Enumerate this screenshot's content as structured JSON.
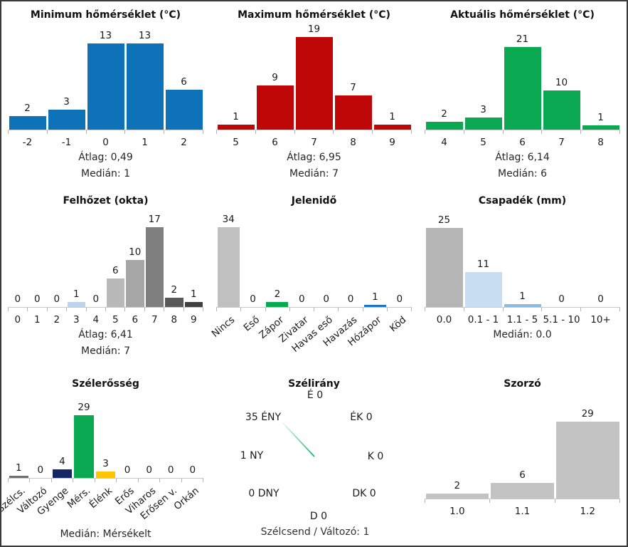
{
  "frame": {
    "background": "#ffffff",
    "border_color": "#3a3a3a"
  },
  "chart_data": [
    {
      "id": "min-temp",
      "type": "bar",
      "title": "Minimum hőmérséklet (°C)",
      "categories": [
        "-2",
        "-1",
        "0",
        "1",
        "2"
      ],
      "values": [
        2,
        3,
        13,
        13,
        6
      ],
      "colors": [
        "#0e72b8",
        "#0e72b8",
        "#0e72b8",
        "#0e72b8",
        "#0e72b8"
      ],
      "stats": [
        "Átlag: 0,49",
        "Medián: 1"
      ],
      "ylim": [
        0,
        13
      ],
      "grid": false,
      "legend": "none"
    },
    {
      "id": "max-temp",
      "type": "bar",
      "title": "Maximum hőmérséklet (°C)",
      "categories": [
        "5",
        "6",
        "7",
        "8",
        "9"
      ],
      "values": [
        1,
        9,
        19,
        7,
        1
      ],
      "colors": [
        "#c00707",
        "#c00707",
        "#c00707",
        "#c00707",
        "#c00707"
      ],
      "stats": [
        "Átlag: 6,95",
        "Medián: 7"
      ],
      "ylim": [
        0,
        19
      ],
      "grid": false,
      "legend": "none"
    },
    {
      "id": "current-temp",
      "type": "bar",
      "title": "Aktuális hőmérséklet (°C)",
      "categories": [
        "4",
        "5",
        "6",
        "7",
        "8"
      ],
      "values": [
        2,
        3,
        21,
        10,
        1
      ],
      "colors": [
        "#0aa851",
        "#0aa851",
        "#0aa851",
        "#0aa851",
        "#0aa851"
      ],
      "stats": [
        "Átlag: 6,14",
        "Medián: 6"
      ],
      "ylim": [
        0,
        21
      ],
      "grid": false,
      "legend": "none"
    },
    {
      "id": "cloud-cover",
      "type": "bar",
      "title": "Felhőzet (okta)",
      "categories": [
        "0",
        "1",
        "2",
        "3",
        "4",
        "5",
        "6",
        "7",
        "8",
        "9"
      ],
      "values": [
        0,
        0,
        0,
        1,
        0,
        6,
        10,
        17,
        2,
        1
      ],
      "colors": [
        "#c0c0c0",
        "#c0c0c0",
        "#c0c0c0",
        "#bdd3ec",
        "#c0c0c0",
        "#b9b9b9",
        "#a6a6a6",
        "#7f7f7f",
        "#595959",
        "#3f3f3f"
      ],
      "stats": [
        "Átlag: 6,41",
        "Medián: 7"
      ],
      "ylim": [
        0,
        17
      ],
      "grid": false,
      "legend": "none"
    },
    {
      "id": "present-weather",
      "type": "bar",
      "title": "Jelenidő",
      "categories": [
        "Nincs",
        "Eső",
        "Zápor",
        "Zivatar",
        "Havas eső",
        "Havazás",
        "Hózápor",
        "Köd"
      ],
      "values": [
        34,
        0,
        2,
        0,
        0,
        0,
        1,
        0
      ],
      "colors": [
        "#c0c0c0",
        "#c0c0c0",
        "#0aa851",
        "#c0c0c0",
        "#c0c0c0",
        "#c0c0c0",
        "#1c74c4",
        "#c0c0c0"
      ],
      "stats": [],
      "ylim": [
        0,
        34
      ],
      "grid": false,
      "legend": "none"
    },
    {
      "id": "precipitation",
      "type": "bar",
      "title": "Csapadék (mm)",
      "categories": [
        "0.0",
        "0.1 - 1",
        "1.1 - 5",
        "5.1 - 10",
        "10+"
      ],
      "values": [
        25,
        11,
        1,
        0,
        0
      ],
      "colors": [
        "#b5b5b5",
        "#cadef3",
        "#8bbbe3",
        "#cadef3",
        "#cadef3"
      ],
      "stats": [
        "Medián: 0.0"
      ],
      "ylim": [
        0,
        25
      ],
      "grid": false,
      "legend": "none"
    },
    {
      "id": "wind-strength",
      "type": "bar",
      "title": "Szélerősség",
      "categories": [
        "Szélcs.",
        "Változó",
        "Gyenge",
        "Mérs.",
        "Élénk",
        "Erős",
        "Viharos",
        "Erősen v.",
        "Orkán"
      ],
      "values": [
        1,
        0,
        4,
        29,
        3,
        0,
        0,
        0,
        0
      ],
      "colors": [
        "#6f6f6f",
        "#9f9f9f",
        "#142664",
        "#0aa851",
        "#fdc400",
        "#c0c0c0",
        "#c0c0c0",
        "#c0c0c0",
        "#c0c0c0"
      ],
      "stats": [
        "Medián: Mérsékelt"
      ],
      "ylim": [
        0,
        29
      ],
      "grid": false,
      "legend": "none"
    },
    {
      "id": "wind-direction",
      "type": "compass",
      "title": "Szélirány",
      "directions": [
        {
          "dir": "É",
          "display": "É 0",
          "value": 0
        },
        {
          "dir": "ÉK",
          "display": "ÉK 0",
          "value": 0
        },
        {
          "dir": "K",
          "display": "K 0",
          "value": 0
        },
        {
          "dir": "DK",
          "display": "DK 0",
          "value": 0
        },
        {
          "dir": "D",
          "display": "D 0",
          "value": 0
        },
        {
          "dir": "DNY",
          "display": "0 DNY",
          "value": 0
        },
        {
          "dir": "NY",
          "display": "1 NY",
          "value": 1
        },
        {
          "dir": "ÉNY",
          "display": "35 ÉNY",
          "value": 35
        }
      ],
      "needle": {
        "direction": "ÉNY",
        "value": 35,
        "color": "#17b862",
        "color_light": "#eafaf1"
      },
      "footer": "Szélcsend / Változó: 1"
    },
    {
      "id": "multiplier",
      "type": "bar",
      "title": "Szorzó",
      "categories": [
        "1.0",
        "1.1",
        "1.2"
      ],
      "values": [
        2,
        6,
        29
      ],
      "colors": [
        "#c3c3c3",
        "#c3c3c3",
        "#c3c3c3"
      ],
      "stats": [],
      "ylim": [
        0,
        29
      ],
      "grid": false,
      "legend": "none"
    }
  ]
}
